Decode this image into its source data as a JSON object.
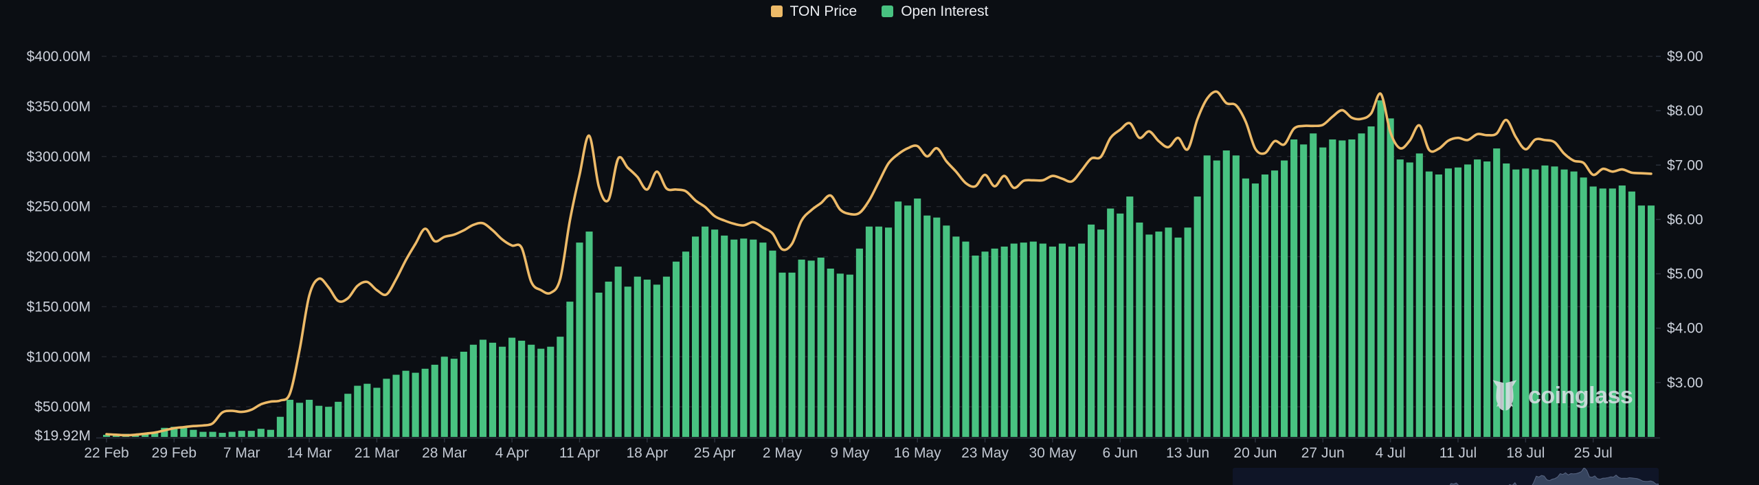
{
  "legend": {
    "items": [
      {
        "label": "TON Price",
        "color": "#EDBA68"
      },
      {
        "label": "Open Interest",
        "color": "#48C281"
      }
    ]
  },
  "watermark": {
    "text": "coinglass"
  },
  "colors": {
    "background": "#0b0e13",
    "bar": "#48C281",
    "line": "#EDBA68",
    "grid": "rgba(160,170,185,0.16)",
    "axis_text": "#ccd1db",
    "x_axis_text": "#c2c8d2",
    "axis_line": "#2b313c",
    "nav_bg": "#0f1527",
    "nav_fill": "#3b4965",
    "nav_stroke": "#8391b5"
  },
  "chart_data": {
    "type": "bar+line combo, daily",
    "title": "",
    "x": {
      "start": "22 Feb",
      "end": "31 Jul",
      "interval": "1 day",
      "count": 161
    },
    "x_tick_labels": [
      "22 Feb",
      "29 Feb",
      "7 Mar",
      "14 Mar",
      "21 Mar",
      "28 Mar",
      "4 Apr",
      "11 Apr",
      "18 Apr",
      "25 Apr",
      "2 May",
      "9 May",
      "16 May",
      "23 May",
      "30 May",
      "6 Jun",
      "13 Jun",
      "20 Jun",
      "27 Jun",
      "4 Jul",
      "11 Jul",
      "18 Jul",
      "25 Jul"
    ],
    "x_tick_day_step": 7,
    "left_axis": {
      "title": "Open Interest (USD)",
      "tick_labels": [
        "$400.00M",
        "$350.00M",
        "$300.00M",
        "$250.00M",
        "$200.00M",
        "$150.00M",
        "$100.00M",
        "$50.00M",
        "$19.92M"
      ],
      "tick_values": [
        400,
        350,
        300,
        250,
        200,
        150,
        100,
        50,
        19.92
      ],
      "min": 19.92,
      "max": 400
    },
    "right_axis": {
      "title": "TON Price (USD)",
      "tick_labels": [
        "$9.00",
        "$8.00",
        "$7.00",
        "$6.00",
        "$5.00",
        "$4.00",
        "$3.00"
      ],
      "tick_values": [
        9,
        8,
        7,
        6,
        5,
        4,
        3
      ],
      "min": 2.0,
      "max": 9.0
    },
    "grid": "horizontal dashed",
    "legend_position": "top-center",
    "series": [
      {
        "name": "Open Interest",
        "type": "bar",
        "axis": "left",
        "unit": "USD millions",
        "color": "#48C281",
        "values": [
          22,
          22,
          23,
          23,
          24,
          25,
          29,
          30,
          29,
          27,
          25,
          25,
          24,
          25,
          26,
          26,
          28,
          27,
          40,
          57,
          54,
          57,
          51,
          50,
          55,
          63,
          71,
          73,
          69,
          78,
          82,
          86,
          84,
          88,
          92,
          100,
          98,
          105,
          112,
          117,
          114,
          110,
          119,
          116,
          112,
          108,
          110,
          120,
          155,
          214,
          225,
          164,
          175,
          190,
          170,
          180,
          177,
          172,
          180,
          195,
          205,
          220,
          230,
          227,
          221,
          217,
          218,
          217,
          214,
          206,
          184,
          184,
          197,
          196,
          199,
          188,
          183,
          182,
          208,
          230,
          230,
          229,
          255,
          251,
          258,
          241,
          239,
          231,
          220,
          215,
          201,
          205,
          208,
          210,
          213,
          214,
          215,
          213,
          210,
          213,
          210,
          213,
          232,
          227,
          248,
          243,
          260,
          234,
          222,
          225,
          229,
          219,
          229,
          260,
          301,
          296,
          306,
          301,
          278,
          273,
          282,
          286,
          296,
          317,
          312,
          323,
          309,
          317,
          316,
          317,
          323,
          330,
          356,
          338,
          297,
          294,
          303,
          285,
          282,
          288,
          289,
          292,
          297,
          295,
          308,
          293,
          287,
          288,
          287,
          291,
          290,
          287,
          285,
          279,
          270,
          268,
          268,
          271,
          265,
          251,
          251
        ]
      },
      {
        "name": "TON Price",
        "type": "line",
        "axis": "right",
        "unit": "USD",
        "color": "#EDBA68",
        "values": [
          2.05,
          2.04,
          2.03,
          2.04,
          2.06,
          2.08,
          2.12,
          2.16,
          2.18,
          2.2,
          2.21,
          2.25,
          2.45,
          2.48,
          2.46,
          2.5,
          2.6,
          2.65,
          2.67,
          2.8,
          3.6,
          4.6,
          4.91,
          4.75,
          4.5,
          4.55,
          4.78,
          4.85,
          4.7,
          4.62,
          4.9,
          5.25,
          5.55,
          5.83,
          5.6,
          5.68,
          5.72,
          5.8,
          5.9,
          5.93,
          5.8,
          5.63,
          5.52,
          5.48,
          4.85,
          4.7,
          4.65,
          4.91,
          5.98,
          6.82,
          7.54,
          6.6,
          6.36,
          7.12,
          6.95,
          6.78,
          6.55,
          6.88,
          6.57,
          6.55,
          6.52,
          6.35,
          6.23,
          6.06,
          5.98,
          5.92,
          5.89,
          5.95,
          5.85,
          5.74,
          5.45,
          5.55,
          5.98,
          6.17,
          6.3,
          6.44,
          6.18,
          6.1,
          6.12,
          6.35,
          6.69,
          7.03,
          7.2,
          7.31,
          7.35,
          7.16,
          7.31,
          7.07,
          6.88,
          6.67,
          6.61,
          6.82,
          6.61,
          6.8,
          6.58,
          6.71,
          6.72,
          6.72,
          6.8,
          6.75,
          6.7,
          6.9,
          7.12,
          7.15,
          7.5,
          7.65,
          7.77,
          7.5,
          7.62,
          7.44,
          7.33,
          7.5,
          7.29,
          7.84,
          8.22,
          8.35,
          8.14,
          8.1,
          7.8,
          7.3,
          7.22,
          7.44,
          7.38,
          7.67,
          7.72,
          7.72,
          7.74,
          7.89,
          8.01,
          7.87,
          7.85,
          7.95,
          8.31,
          7.6,
          7.31,
          7.45,
          7.73,
          7.28,
          7.3,
          7.45,
          7.5,
          7.46,
          7.57,
          7.55,
          7.58,
          7.83,
          7.51,
          7.29,
          7.47,
          7.46,
          7.42,
          7.21,
          7.08,
          7.04,
          6.82,
          6.93,
          6.88,
          6.92,
          6.86,
          6.85,
          6.84
        ]
      }
    ]
  }
}
